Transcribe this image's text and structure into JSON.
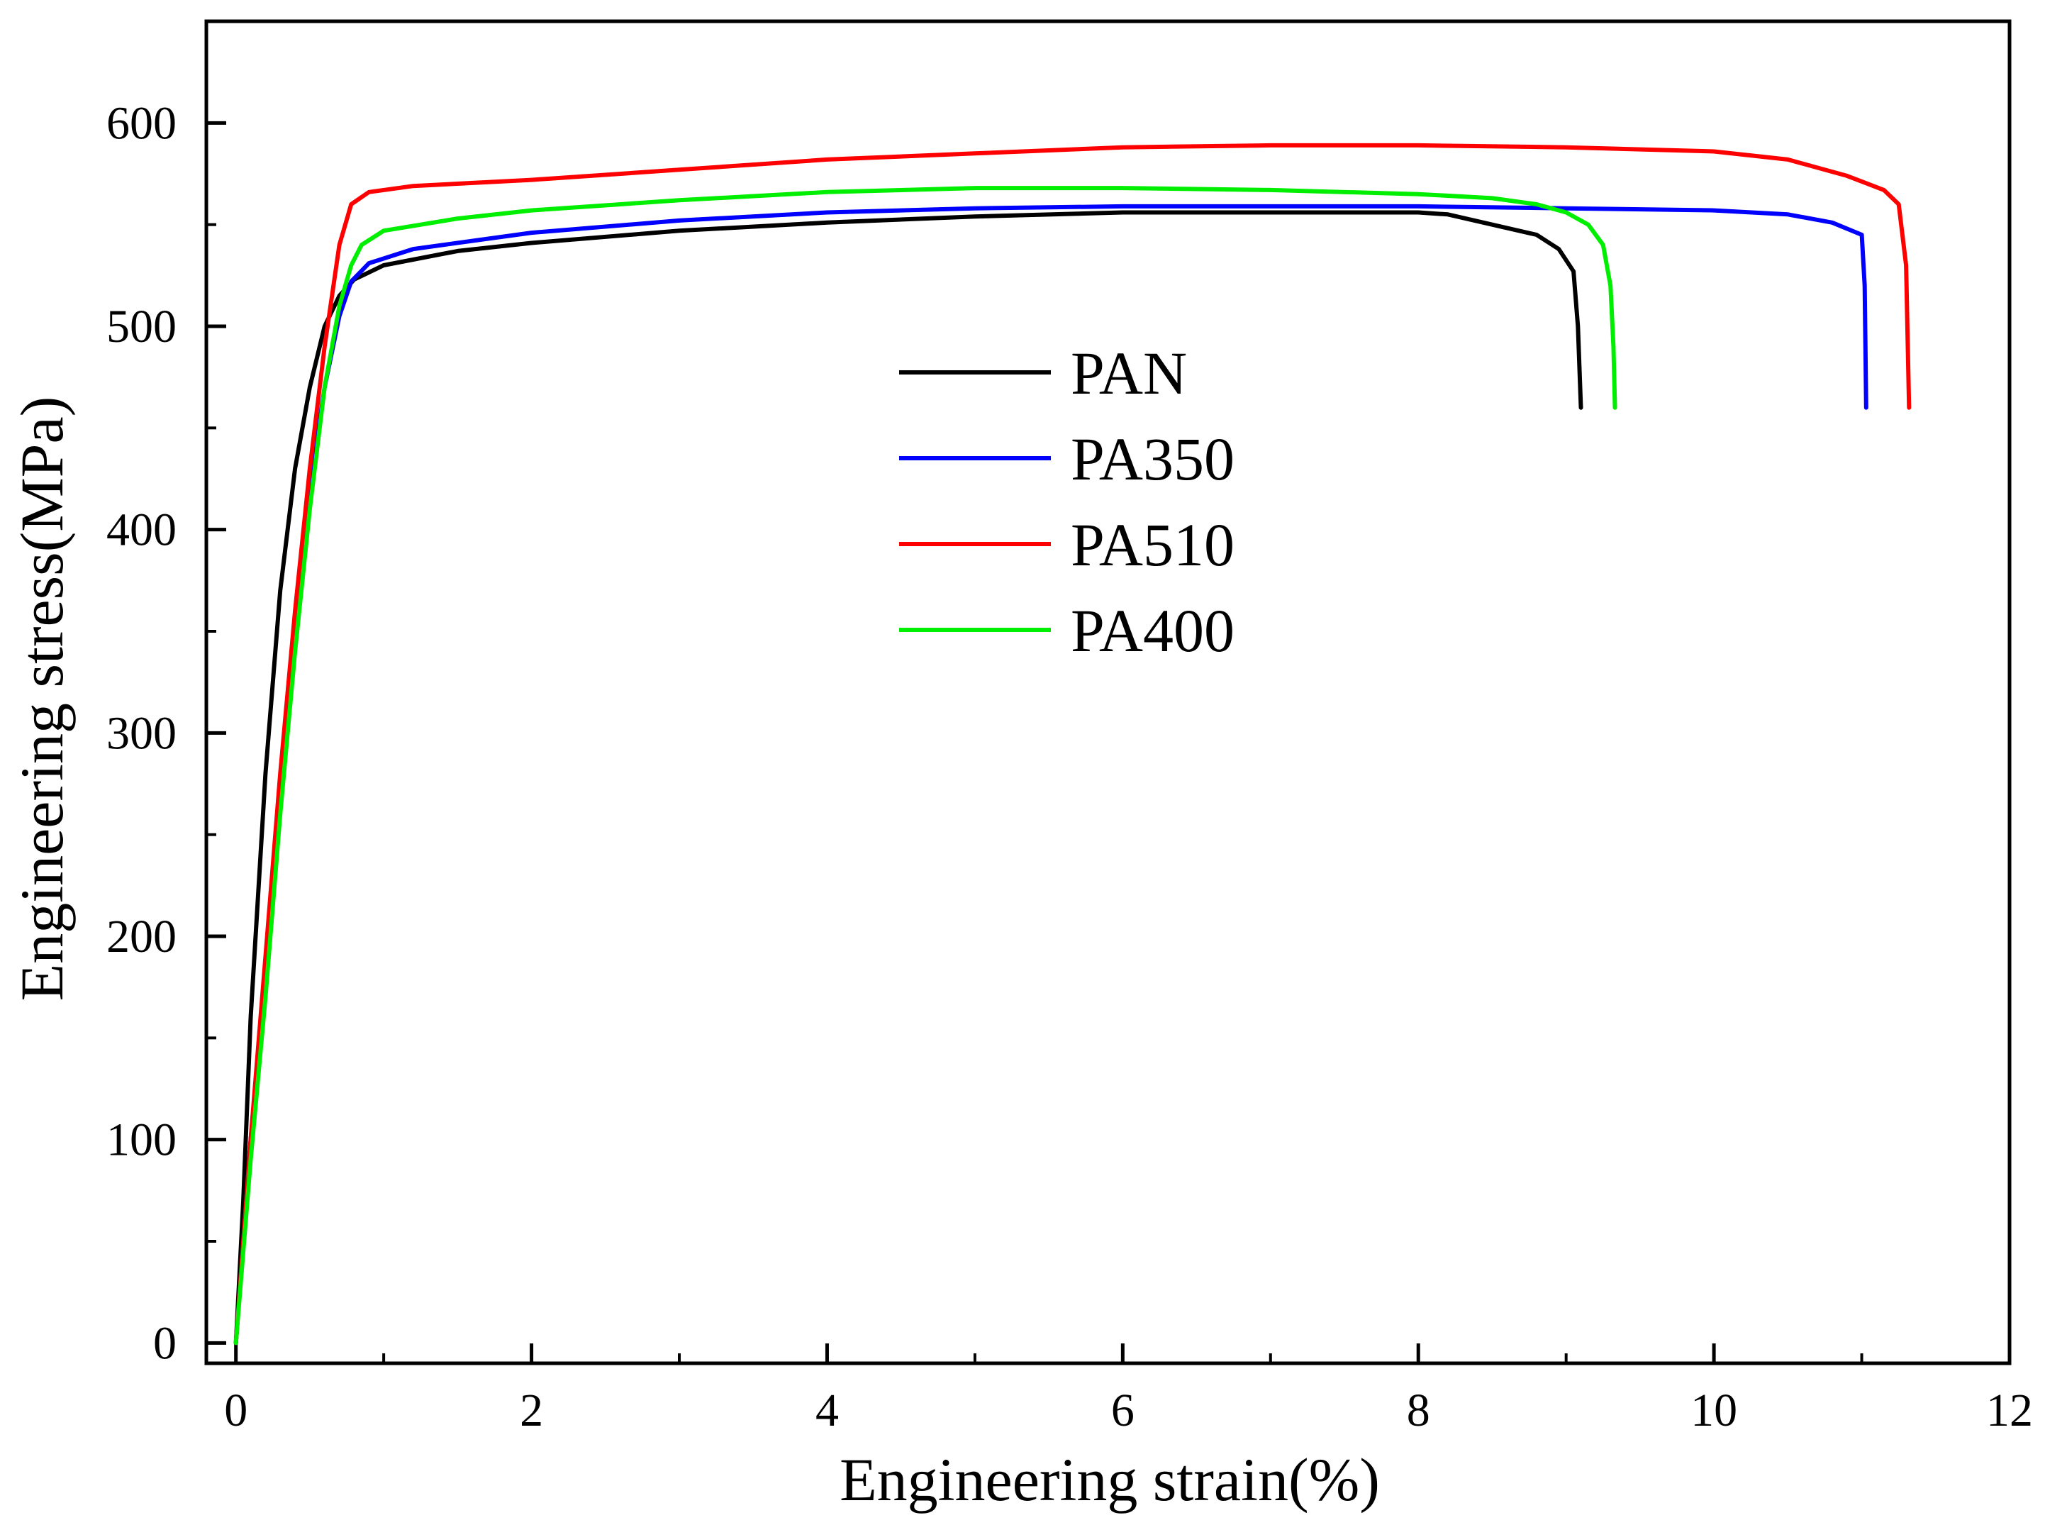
{
  "chart_data": {
    "type": "line",
    "title": "",
    "xlabel": "Engineering strain(%)",
    "ylabel": "Engineering stress(MPa)",
    "xlim": [
      -0.2,
      12
    ],
    "ylim": [
      -10,
      650
    ],
    "xticks": [
      0,
      2,
      4,
      6,
      8,
      10,
      12
    ],
    "yticks": [
      0,
      100,
      200,
      300,
      400,
      500,
      600
    ],
    "xtick_labels": [
      "0",
      "2",
      "4",
      "6",
      "8",
      "10",
      "12"
    ],
    "ytick_labels": [
      "0",
      "100",
      "200",
      "300",
      "400",
      "500",
      "600"
    ],
    "grid": false,
    "legend_position": "center",
    "series": [
      {
        "name": "PAN",
        "color": "#000000",
        "points": [
          [
            0,
            0
          ],
          [
            0.05,
            70
          ],
          [
            0.1,
            160
          ],
          [
            0.2,
            280
          ],
          [
            0.3,
            370
          ],
          [
            0.4,
            430
          ],
          [
            0.5,
            470
          ],
          [
            0.6,
            500
          ],
          [
            0.7,
            515
          ],
          [
            0.8,
            523
          ],
          [
            1.0,
            530
          ],
          [
            1.5,
            537
          ],
          [
            2.0,
            541
          ],
          [
            3.0,
            547
          ],
          [
            4.0,
            551
          ],
          [
            5.0,
            554
          ],
          [
            6.0,
            556
          ],
          [
            7.0,
            556
          ],
          [
            8.0,
            556
          ],
          [
            8.2,
            555
          ],
          [
            8.5,
            550
          ],
          [
            8.8,
            545
          ],
          [
            8.95,
            538
          ],
          [
            9.05,
            527
          ],
          [
            9.08,
            500
          ],
          [
            9.1,
            460
          ]
        ]
      },
      {
        "name": "PA350",
        "color": "#0000ff",
        "points": [
          [
            0,
            0
          ],
          [
            0.1,
            100
          ],
          [
            0.2,
            180
          ],
          [
            0.3,
            270
          ],
          [
            0.4,
            350
          ],
          [
            0.5,
            420
          ],
          [
            0.6,
            470
          ],
          [
            0.7,
            505
          ],
          [
            0.78,
            522
          ],
          [
            0.9,
            531
          ],
          [
            1.2,
            538
          ],
          [
            2.0,
            546
          ],
          [
            3.0,
            552
          ],
          [
            4.0,
            556
          ],
          [
            5.0,
            558
          ],
          [
            6.0,
            559
          ],
          [
            7.0,
            559
          ],
          [
            8.0,
            559
          ],
          [
            9.0,
            558
          ],
          [
            10.0,
            557
          ],
          [
            10.5,
            555
          ],
          [
            10.8,
            551
          ],
          [
            11.0,
            545
          ],
          [
            11.02,
            520
          ],
          [
            11.03,
            460
          ]
        ]
      },
      {
        "name": "PA510",
        "color": "#ff0000",
        "points": [
          [
            0,
            0
          ],
          [
            0.1,
            100
          ],
          [
            0.2,
            190
          ],
          [
            0.3,
            280
          ],
          [
            0.4,
            360
          ],
          [
            0.5,
            430
          ],
          [
            0.6,
            490
          ],
          [
            0.7,
            540
          ],
          [
            0.78,
            560
          ],
          [
            0.9,
            566
          ],
          [
            1.2,
            569
          ],
          [
            2.0,
            572
          ],
          [
            3.0,
            577
          ],
          [
            4.0,
            582
          ],
          [
            5.0,
            585
          ],
          [
            6.0,
            588
          ],
          [
            7.0,
            589
          ],
          [
            8.0,
            589
          ],
          [
            9.0,
            588
          ],
          [
            10.0,
            586
          ],
          [
            10.5,
            582
          ],
          [
            10.9,
            574
          ],
          [
            11.15,
            567
          ],
          [
            11.25,
            560
          ],
          [
            11.3,
            530
          ],
          [
            11.32,
            460
          ]
        ]
      },
      {
        "name": "PA400",
        "color": "#00ee00",
        "points": [
          [
            0,
            0
          ],
          [
            0.1,
            90
          ],
          [
            0.2,
            170
          ],
          [
            0.3,
            260
          ],
          [
            0.4,
            340
          ],
          [
            0.5,
            410
          ],
          [
            0.6,
            470
          ],
          [
            0.7,
            510
          ],
          [
            0.78,
            530
          ],
          [
            0.85,
            540
          ],
          [
            1.0,
            547
          ],
          [
            1.5,
            553
          ],
          [
            2.0,
            557
          ],
          [
            3.0,
            562
          ],
          [
            4.0,
            566
          ],
          [
            5.0,
            568
          ],
          [
            6.0,
            568
          ],
          [
            7.0,
            567
          ],
          [
            8.0,
            565
          ],
          [
            8.5,
            563
          ],
          [
            8.8,
            560
          ],
          [
            9.0,
            556
          ],
          [
            9.15,
            550
          ],
          [
            9.25,
            540
          ],
          [
            9.3,
            520
          ],
          [
            9.32,
            490
          ],
          [
            9.33,
            460
          ]
        ]
      }
    ]
  }
}
